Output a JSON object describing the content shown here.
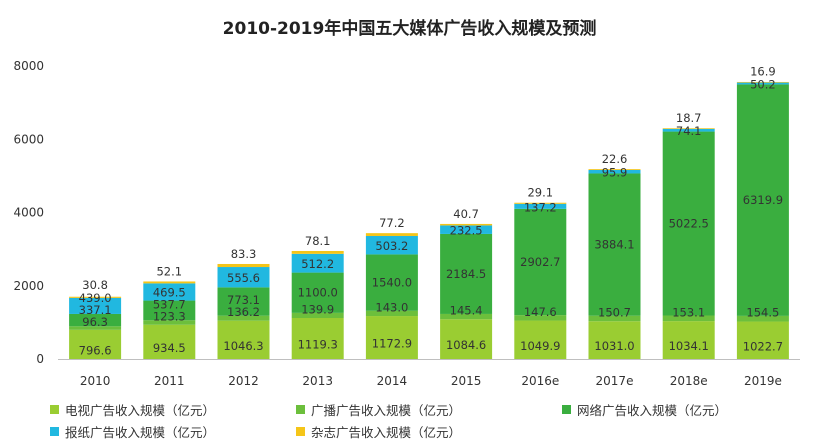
{
  "chart_data": {
    "type": "bar",
    "stacked": true,
    "title": "2010-2019年中国五大媒体广告收入规模及预测",
    "xlabel": "",
    "ylabel": "",
    "ylim": [
      0,
      8000
    ],
    "yticks": [
      "0",
      "2000",
      "4000",
      "6000",
      "8000"
    ],
    "grid": false,
    "legend_position": "bottom",
    "categories": [
      "2010",
      "2011",
      "2012",
      "2013",
      "2014",
      "2015",
      "2016e",
      "2017e",
      "2018e",
      "2019e"
    ],
    "series": [
      {
        "name": "电视广告收入规模（亿元）",
        "color": "#9acd32",
        "values": [
          796.6,
          934.5,
          1046.3,
          1119.3,
          1172.9,
          1084.6,
          1049.9,
          1031.0,
          1034.1,
          1022.7
        ],
        "labels": [
          "796.6",
          "934.5",
          "1046.3",
          "1119.3",
          "1172.9",
          "1084.6",
          "1049.9",
          "1031.0",
          "1034.1",
          "1022.7"
        ]
      },
      {
        "name": "广播广告收入规模（亿元）",
        "color": "#6cbf3c",
        "values": [
          96.3,
          123.3,
          136.2,
          139.9,
          143.0,
          145.4,
          147.6,
          150.7,
          153.1,
          154.5
        ],
        "labels": [
          "96.3",
          "123.3",
          "136.2",
          "139.9",
          "143.0",
          "145.4",
          "147.6",
          "150.7",
          "153.1",
          "154.5"
        ]
      },
      {
        "name": "网络广告收入规模（亿元）",
        "color": "#3aae3f",
        "values": [
          337.1,
          537.7,
          773.1,
          1100.0,
          1540.0,
          2184.5,
          2902.7,
          3884.1,
          5022.5,
          6319.9
        ],
        "labels": [
          "337.1",
          "537.7",
          "773.1",
          "1100.0",
          "1540.0",
          "2184.5",
          "2902.7",
          "3884.1",
          "5022.5",
          "6319.9"
        ]
      },
      {
        "name": "报纸广告收入规模（亿元）",
        "color": "#21b8e0",
        "values": [
          439.0,
          469.5,
          555.6,
          512.2,
          503.2,
          232.5,
          137.2,
          95.9,
          74.1,
          50.2
        ],
        "labels": [
          "439.0",
          "469.5",
          "555.6",
          "512.2",
          "503.2",
          "232.5",
          "137.2",
          "95.9",
          "74.1",
          "50.2"
        ]
      },
      {
        "name": "杂志广告收入规模（亿元）",
        "color": "#f5c518",
        "values": [
          30.8,
          52.1,
          83.3,
          78.1,
          77.2,
          40.7,
          29.1,
          22.6,
          18.7,
          16.9
        ],
        "labels": [
          "30.8",
          "52.1",
          "83.3",
          "78.1",
          "77.2",
          "40.7",
          "29.1",
          "22.6",
          "18.7",
          "16.9"
        ]
      }
    ]
  }
}
